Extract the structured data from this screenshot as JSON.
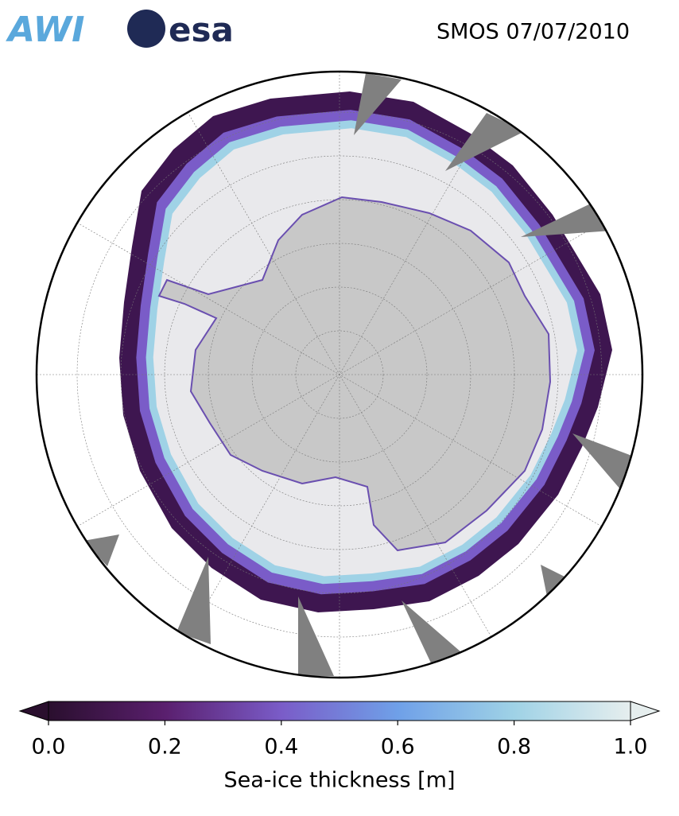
{
  "logos": {
    "awi": "AWI",
    "esa": "esa"
  },
  "title": "SMOS 07/07/2010",
  "colorbar": {
    "label": "Sea-ice thickness [m]",
    "lim": [
      0,
      1
    ],
    "ticks": [
      {
        "value": 0,
        "label": "0.0"
      },
      {
        "value": 0.2,
        "label": "0.2"
      },
      {
        "value": 0.4,
        "label": "0.4"
      },
      {
        "value": 0.6,
        "label": "0.6"
      },
      {
        "value": 0.8,
        "label": "0.8"
      },
      {
        "value": 1,
        "label": "1.0"
      }
    ],
    "colors": [
      "#2a0f2e",
      "#5a1f6e",
      "#7a5cc8",
      "#6fa0e8",
      "#9fd2e6",
      "#e6eeee"
    ]
  }
}
